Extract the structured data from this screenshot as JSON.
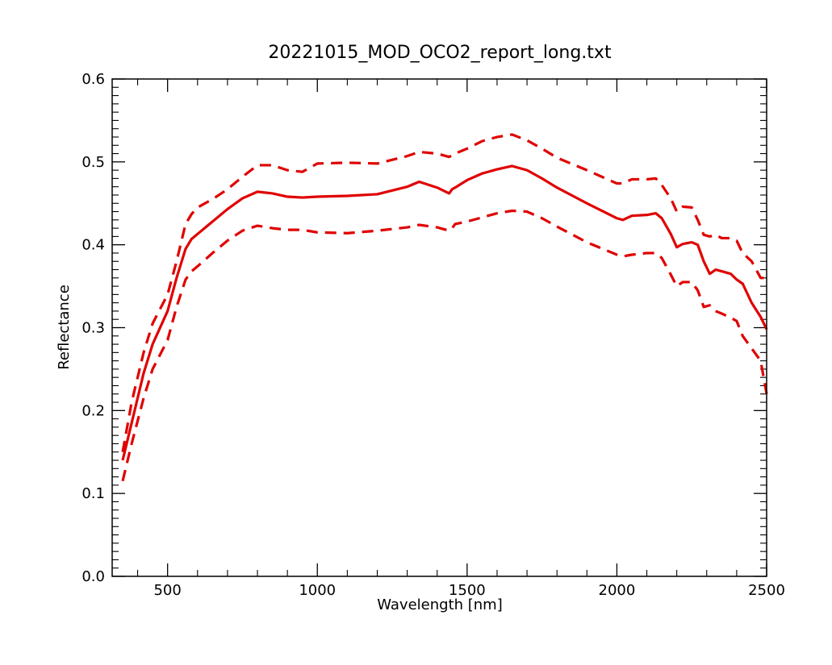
{
  "chart_data": {
    "type": "line",
    "title": "20221015_MOD_OCO2_report_long.txt",
    "xlabel": "Wavelength [nm]",
    "ylabel": "Reflectance",
    "xlim": [
      315,
      2500
    ],
    "ylim": [
      0.0,
      0.6
    ],
    "xticks": [
      500,
      1000,
      1500,
      2000,
      2500
    ],
    "xtick_labels": [
      "500",
      "1000",
      "1500",
      "2000",
      "2500"
    ],
    "yticks": [
      0.0,
      0.1,
      0.2,
      0.3,
      0.4,
      0.5,
      0.6
    ],
    "ytick_labels": [
      "0.0",
      "0.1",
      "0.2",
      "0.3",
      "0.4",
      "0.5",
      "0.6"
    ],
    "grid": false,
    "legend": "none",
    "color": "#e00000",
    "series": [
      {
        "style": "solid",
        "x": [
          350,
          380,
          420,
          450,
          500,
          530,
          560,
          580,
          600,
          650,
          700,
          750,
          800,
          850,
          900,
          950,
          1000,
          1100,
          1200,
          1300,
          1340,
          1400,
          1440,
          1450,
          1460,
          1500,
          1550,
          1600,
          1650,
          1700,
          1750,
          1800,
          1900,
          2000,
          2020,
          2050,
          2100,
          2130,
          2150,
          2180,
          2200,
          2220,
          2250,
          2270,
          2290,
          2310,
          2330,
          2350,
          2380,
          2400,
          2420,
          2450,
          2480,
          2500
        ],
        "y": [
          0.14,
          0.185,
          0.245,
          0.28,
          0.32,
          0.36,
          0.395,
          0.407,
          0.413,
          0.428,
          0.443,
          0.456,
          0.464,
          0.462,
          0.458,
          0.457,
          0.458,
          0.459,
          0.461,
          0.47,
          0.476,
          0.469,
          0.462,
          0.467,
          0.469,
          0.478,
          0.486,
          0.491,
          0.495,
          0.49,
          0.48,
          0.469,
          0.45,
          0.432,
          0.43,
          0.435,
          0.436,
          0.438,
          0.432,
          0.413,
          0.397,
          0.401,
          0.403,
          0.4,
          0.38,
          0.365,
          0.37,
          0.368,
          0.365,
          0.358,
          0.353,
          0.33,
          0.313,
          0.298
        ]
      },
      {
        "style": "dashed",
        "x": [
          350,
          380,
          420,
          450,
          500,
          530,
          560,
          580,
          600,
          650,
          700,
          750,
          800,
          850,
          900,
          950,
          1000,
          1100,
          1200,
          1300,
          1340,
          1400,
          1440,
          1450,
          1460,
          1500,
          1550,
          1600,
          1650,
          1700,
          1750,
          1800,
          1900,
          2000,
          2020,
          2050,
          2100,
          2130,
          2150,
          2180,
          2200,
          2220,
          2250,
          2270,
          2290,
          2310,
          2330,
          2350,
          2380,
          2400,
          2420,
          2450,
          2480,
          2500
        ],
        "y": [
          0.15,
          0.21,
          0.27,
          0.305,
          0.34,
          0.38,
          0.425,
          0.437,
          0.445,
          0.455,
          0.467,
          0.482,
          0.496,
          0.496,
          0.49,
          0.488,
          0.498,
          0.499,
          0.498,
          0.507,
          0.512,
          0.51,
          0.506,
          0.508,
          0.51,
          0.516,
          0.525,
          0.53,
          0.533,
          0.526,
          0.516,
          0.505,
          0.49,
          0.474,
          0.474,
          0.479,
          0.479,
          0.48,
          0.472,
          0.456,
          0.44,
          0.446,
          0.445,
          0.43,
          0.412,
          0.41,
          0.412,
          0.408,
          0.408,
          0.405,
          0.39,
          0.38,
          0.36,
          0.36
        ]
      },
      {
        "style": "dashed",
        "x": [
          350,
          380,
          420,
          450,
          500,
          530,
          560,
          580,
          600,
          650,
          700,
          750,
          800,
          850,
          900,
          950,
          1000,
          1100,
          1200,
          1300,
          1340,
          1400,
          1440,
          1450,
          1460,
          1500,
          1550,
          1600,
          1650,
          1700,
          1750,
          1800,
          1900,
          2000,
          2020,
          2050,
          2100,
          2130,
          2150,
          2180,
          2200,
          2220,
          2250,
          2270,
          2290,
          2310,
          2330,
          2350,
          2380,
          2400,
          2420,
          2450,
          2480,
          2500
        ],
        "y": [
          0.115,
          0.16,
          0.215,
          0.25,
          0.285,
          0.325,
          0.358,
          0.368,
          0.374,
          0.39,
          0.405,
          0.417,
          0.423,
          0.42,
          0.418,
          0.418,
          0.415,
          0.414,
          0.417,
          0.421,
          0.424,
          0.421,
          0.417,
          0.42,
          0.425,
          0.428,
          0.433,
          0.438,
          0.441,
          0.44,
          0.432,
          0.422,
          0.403,
          0.388,
          0.386,
          0.388,
          0.39,
          0.39,
          0.384,
          0.364,
          0.35,
          0.355,
          0.355,
          0.345,
          0.325,
          0.327,
          0.32,
          0.317,
          0.312,
          0.308,
          0.29,
          0.275,
          0.26,
          0.22
        ]
      }
    ]
  }
}
